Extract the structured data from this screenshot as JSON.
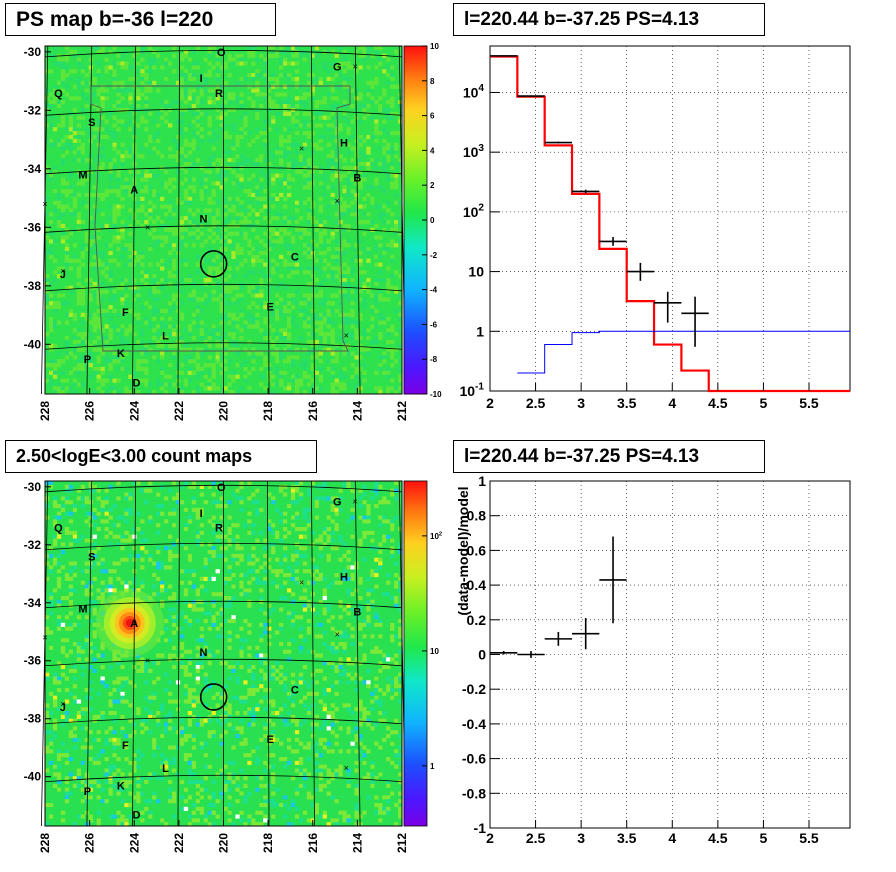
{
  "panels": {
    "ps_map": {
      "title": "PS map b=-36 l=220"
    },
    "spectrum": {
      "title": "l=220.44 b=-37.25 PS=4.13"
    },
    "count_map": {
      "title": "2.50<logE<3.00 count maps"
    },
    "residual": {
      "title": "l=220.44 b=-37.25 PS=4.13"
    }
  },
  "chart_data": [
    {
      "type": "heatmap",
      "panel": "ps_map",
      "title": "PS map b=-36 l=220",
      "x_ticks": [
        "228",
        "226",
        "224",
        "222",
        "220",
        "218",
        "216",
        "214",
        "212"
      ],
      "y_ticks": [
        "-30",
        "-32",
        "-34",
        "-36",
        "-38",
        "-40"
      ],
      "xlim": [
        228,
        212
      ],
      "ylim": [
        -41.7,
        -29.8
      ],
      "colorbar": {
        "ticks": [
          "10",
          "8",
          "6",
          "4",
          "2",
          "0",
          "-2",
          "-4",
          "-6",
          "-8",
          "-10"
        ],
        "range": [
          -10,
          10
        ],
        "scale": "linear"
      },
      "background_value": 0,
      "marked_source": {
        "l": 220.44,
        "b": -37.25,
        "marker": "circle"
      },
      "source_labels": [
        {
          "label": "O",
          "l": 220.1,
          "b": -30.0
        },
        {
          "label": "G",
          "l": 214.9,
          "b": -30.5
        },
        {
          "label": "Q",
          "l": 227.4,
          "b": -31.4
        },
        {
          "label": "I",
          "l": 221.0,
          "b": -30.9
        },
        {
          "label": "R",
          "l": 220.2,
          "b": -31.4
        },
        {
          "label": "S",
          "l": 225.9,
          "b": -32.4
        },
        {
          "label": "H",
          "l": 214.6,
          "b": -33.1
        },
        {
          "label": "M",
          "l": 226.3,
          "b": -34.2
        },
        {
          "label": "A",
          "l": 224.0,
          "b": -34.7
        },
        {
          "label": "B",
          "l": 214.0,
          "b": -34.3
        },
        {
          "label": "N",
          "l": 220.9,
          "b": -35.7
        },
        {
          "label": "C",
          "l": 216.8,
          "b": -37.0
        },
        {
          "label": "J",
          "l": 227.2,
          "b": -37.6
        },
        {
          "label": "E",
          "l": 217.9,
          "b": -38.7
        },
        {
          "label": "F",
          "l": 224.4,
          "b": -38.9
        },
        {
          "label": "L",
          "l": 222.6,
          "b": -39.7
        },
        {
          "label": "P",
          "l": 226.1,
          "b": -40.5
        },
        {
          "label": "K",
          "l": 224.6,
          "b": -40.3
        },
        {
          "label": "D",
          "l": 223.9,
          "b": -41.3
        }
      ],
      "x_marks": [
        {
          "l": 214.1,
          "b": -30.5
        },
        {
          "l": 216.5,
          "b": -33.3
        },
        {
          "l": 214.9,
          "b": -35.1
        },
        {
          "l": 228.0,
          "b": -35.2
        },
        {
          "l": 223.4,
          "b": -36.0
        },
        {
          "l": 227.2,
          "b": -37.5
        },
        {
          "l": 214.5,
          "b": -39.7
        }
      ]
    },
    {
      "type": "line",
      "panel": "spectrum",
      "title": "l=220.44 b=-37.25 PS=4.13",
      "x_ticks": [
        "2",
        "2.5",
        "3",
        "3.5",
        "4",
        "4.5",
        "5",
        "5.5"
      ],
      "y_ticks": [
        "10^-1",
        "1",
        "10",
        "10^2",
        "10^3",
        "10^4"
      ],
      "xlim": [
        2,
        5.95
      ],
      "ylim": [
        0.1,
        60000
      ],
      "y_scale": "log",
      "grid": true,
      "series": [
        {
          "style": "histogram",
          "color": "#ff0000",
          "bin_edges": [
            2.0,
            2.3,
            2.6,
            2.9,
            3.2,
            3.5,
            3.8,
            4.1,
            4.4,
            5.95
          ],
          "values": [
            40000,
            8500,
            1300,
            200,
            24,
            3.2,
            0.6,
            0.22,
            0.1
          ]
        },
        {
          "style": "histogram",
          "color": "#0000ff",
          "bin_edges": [
            2.3,
            2.6,
            2.9,
            3.2,
            3.5,
            5.95
          ],
          "values": [
            0.2,
            0.6,
            0.95,
            1.0,
            1.0
          ]
        },
        {
          "style": "errorbar",
          "color": "#000000",
          "points": [
            {
              "x": 2.15,
              "y": 41000,
              "xerr": 0.15,
              "ylo": 40000,
              "yhi": 42000
            },
            {
              "x": 2.45,
              "y": 8700,
              "xerr": 0.15,
              "ylo": 8500,
              "yhi": 8900
            },
            {
              "x": 2.75,
              "y": 1450,
              "xerr": 0.15,
              "ylo": 1400,
              "yhi": 1500
            },
            {
              "x": 3.05,
              "y": 220,
              "xerr": 0.15,
              "ylo": 205,
              "yhi": 235
            },
            {
              "x": 3.35,
              "y": 32,
              "xerr": 0.15,
              "ylo": 27,
              "yhi": 38
            },
            {
              "x": 3.65,
              "y": 10,
              "xerr": 0.15,
              "ylo": 7,
              "yhi": 14
            },
            {
              "x": 3.95,
              "y": 3,
              "xerr": 0.15,
              "ylo": 1.4,
              "yhi": 4.6
            },
            {
              "x": 4.25,
              "y": 2,
              "xerr": 0.15,
              "ylo": 0.55,
              "yhi": 3.8
            }
          ]
        }
      ]
    },
    {
      "type": "heatmap",
      "panel": "count_map",
      "title": "2.50<logE<3.00 count maps",
      "x_ticks": [
        "228",
        "226",
        "224",
        "222",
        "220",
        "218",
        "216",
        "214",
        "212"
      ],
      "y_ticks": [
        "-30",
        "-32",
        "-34",
        "-36",
        "-38",
        "-40"
      ],
      "xlim": [
        228,
        212
      ],
      "ylim": [
        -41.7,
        -29.8
      ],
      "colorbar": {
        "ticks": [
          "10^2",
          "10",
          "1"
        ],
        "range": [
          0.3,
          300
        ],
        "scale": "log"
      },
      "bright_source": {
        "l": 224.2,
        "b": -34.7
      },
      "marked_source": {
        "l": 220.44,
        "b": -37.25,
        "marker": "circle"
      }
    },
    {
      "type": "scatter",
      "panel": "residual",
      "title": "l=220.44 b=-37.25 PS=4.13",
      "ylabel": "(data-model)/model",
      "x_ticks": [
        "2",
        "2.5",
        "3",
        "3.5",
        "4",
        "4.5",
        "5",
        "5.5"
      ],
      "y_ticks": [
        "1",
        "0.8",
        "0.6",
        "0.4",
        "0.2",
        "0",
        "-0.2",
        "-0.4",
        "-0.6",
        "-0.8",
        "-1"
      ],
      "xlim": [
        2,
        5.95
      ],
      "ylim": [
        -1,
        1
      ],
      "grid": true,
      "points": [
        {
          "x": 2.15,
          "y": 0.01,
          "xerr": 0.15,
          "yerr": 0.01
        },
        {
          "x": 2.45,
          "y": 0.0,
          "xerr": 0.15,
          "yerr": 0.02
        },
        {
          "x": 2.75,
          "y": 0.09,
          "xerr": 0.15,
          "yerr": 0.04
        },
        {
          "x": 3.05,
          "y": 0.12,
          "xerr": 0.15,
          "yerr": 0.09
        },
        {
          "x": 3.35,
          "y": 0.43,
          "xerr": 0.15,
          "yerr": 0.25
        }
      ]
    }
  ]
}
